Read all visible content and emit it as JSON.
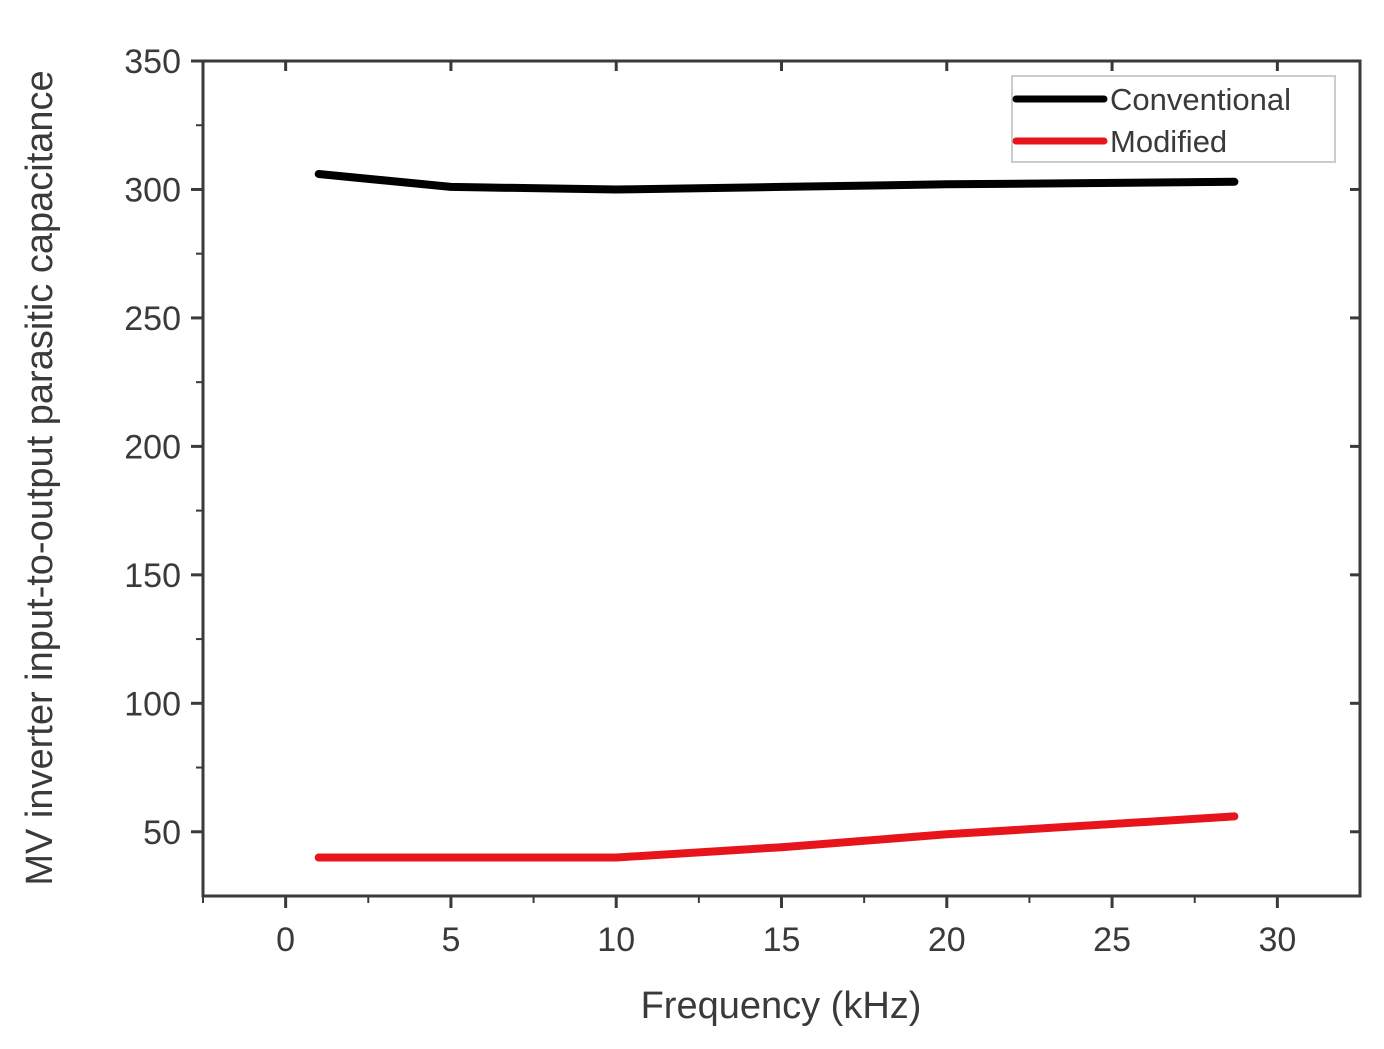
{
  "chart_data": {
    "type": "line",
    "title": "",
    "xlabel": "Frequency (kHz)",
    "ylabel": "MV inverter input-to-output parasitic capacitance",
    "xlim": [
      -2.5,
      32.5
    ],
    "ylim": [
      25,
      350
    ],
    "x_ticks": [
      0,
      5,
      10,
      15,
      20,
      25,
      30
    ],
    "y_ticks": [
      50,
      100,
      150,
      200,
      250,
      300,
      350
    ],
    "grid": false,
    "legend_position": "top-right",
    "series": [
      {
        "name": "Conventional",
        "color": "#000000",
        "x": [
          1,
          5,
          10,
          15,
          20,
          28.7
        ],
        "y": [
          306,
          301,
          300,
          301,
          302,
          303
        ]
      },
      {
        "name": "Modified",
        "color": "#e8141c",
        "x": [
          1,
          5,
          10,
          15,
          20,
          28.7
        ],
        "y": [
          40,
          40,
          40,
          44,
          49,
          56
        ]
      }
    ]
  }
}
